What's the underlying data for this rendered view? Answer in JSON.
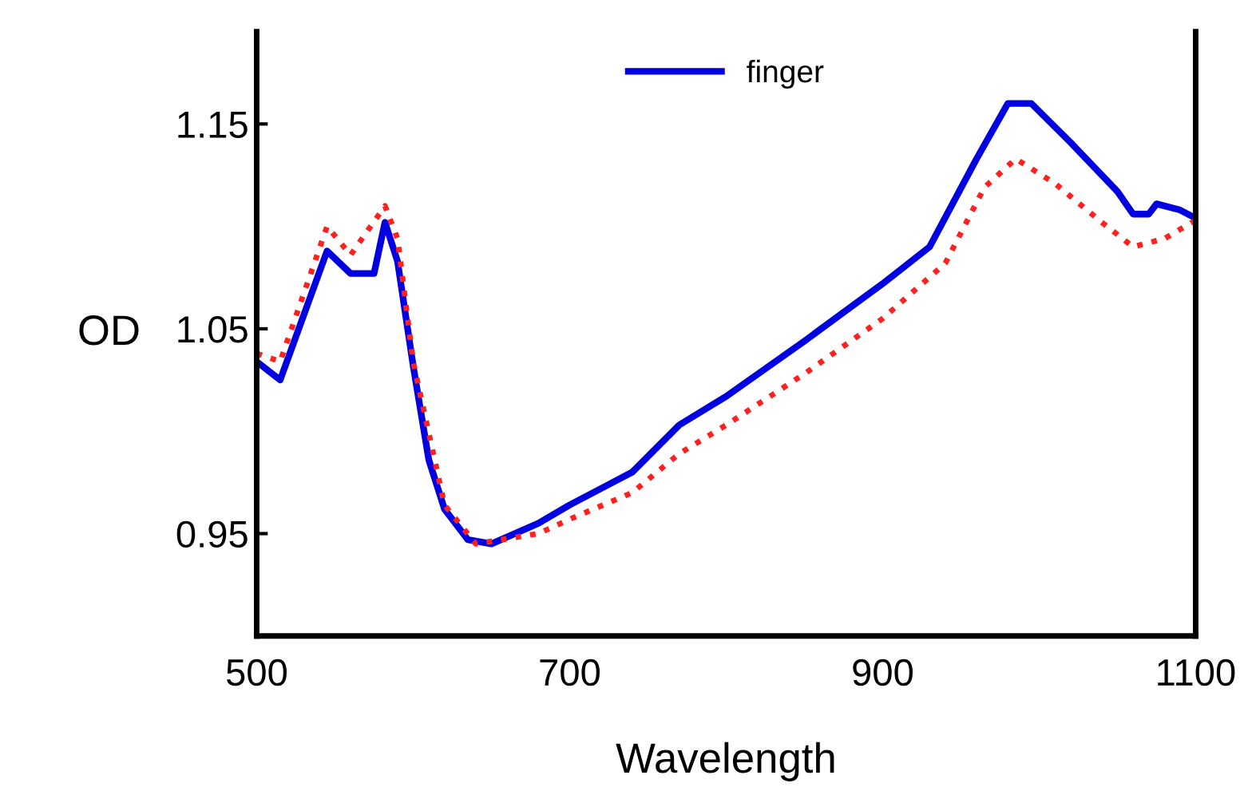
{
  "chart_data": {
    "type": "line",
    "xlabel": "Wavelength",
    "ylabel": "OD",
    "xlim": [
      500,
      1100
    ],
    "xticks": [
      500,
      700,
      900,
      1100
    ],
    "ylim": [
      0.9,
      1.195
    ],
    "yticks": [
      0.95,
      1.05,
      1.15
    ],
    "grid": false,
    "legend": "top",
    "line_style": "solid",
    "marker": "none",
    "series": [
      {
        "name": "finger",
        "color": "#0000e0",
        "x": [
          500,
          515,
          545,
          560,
          575,
          582,
          590,
          600,
          610,
          620,
          635,
          650,
          680,
          700,
          740,
          770,
          800,
          850,
          900,
          930,
          960,
          980,
          995,
          1020,
          1050,
          1060,
          1070,
          1075,
          1090,
          1100
        ],
        "values": [
          1.034,
          1.025,
          1.088,
          1.077,
          1.077,
          1.102,
          1.083,
          1.032,
          0.986,
          0.962,
          0.947,
          0.945,
          0.955,
          0.964,
          0.98,
          1.003,
          1.017,
          1.044,
          1.072,
          1.09,
          1.133,
          1.16,
          1.16,
          1.141,
          1.117,
          1.106,
          1.106,
          1.111,
          1.108,
          1.104
        ]
      },
      {
        "color": "#ff2020",
        "line_style": "dotted",
        "x": [
          500,
          515,
          545,
          560,
          582,
          590,
          600,
          620,
          640,
          680,
          700,
          740,
          770,
          800,
          850,
          900,
          940,
          965,
          985,
          1010,
          1040,
          1060,
          1080,
          1100
        ],
        "values": [
          1.038,
          1.034,
          1.1,
          1.086,
          1.11,
          1.094,
          1.034,
          0.964,
          0.945,
          0.95,
          0.957,
          0.97,
          0.989,
          1.003,
          1.028,
          1.055,
          1.082,
          1.119,
          1.133,
          1.121,
          1.102,
          1.09,
          1.094,
          1.103
        ]
      }
    ]
  }
}
